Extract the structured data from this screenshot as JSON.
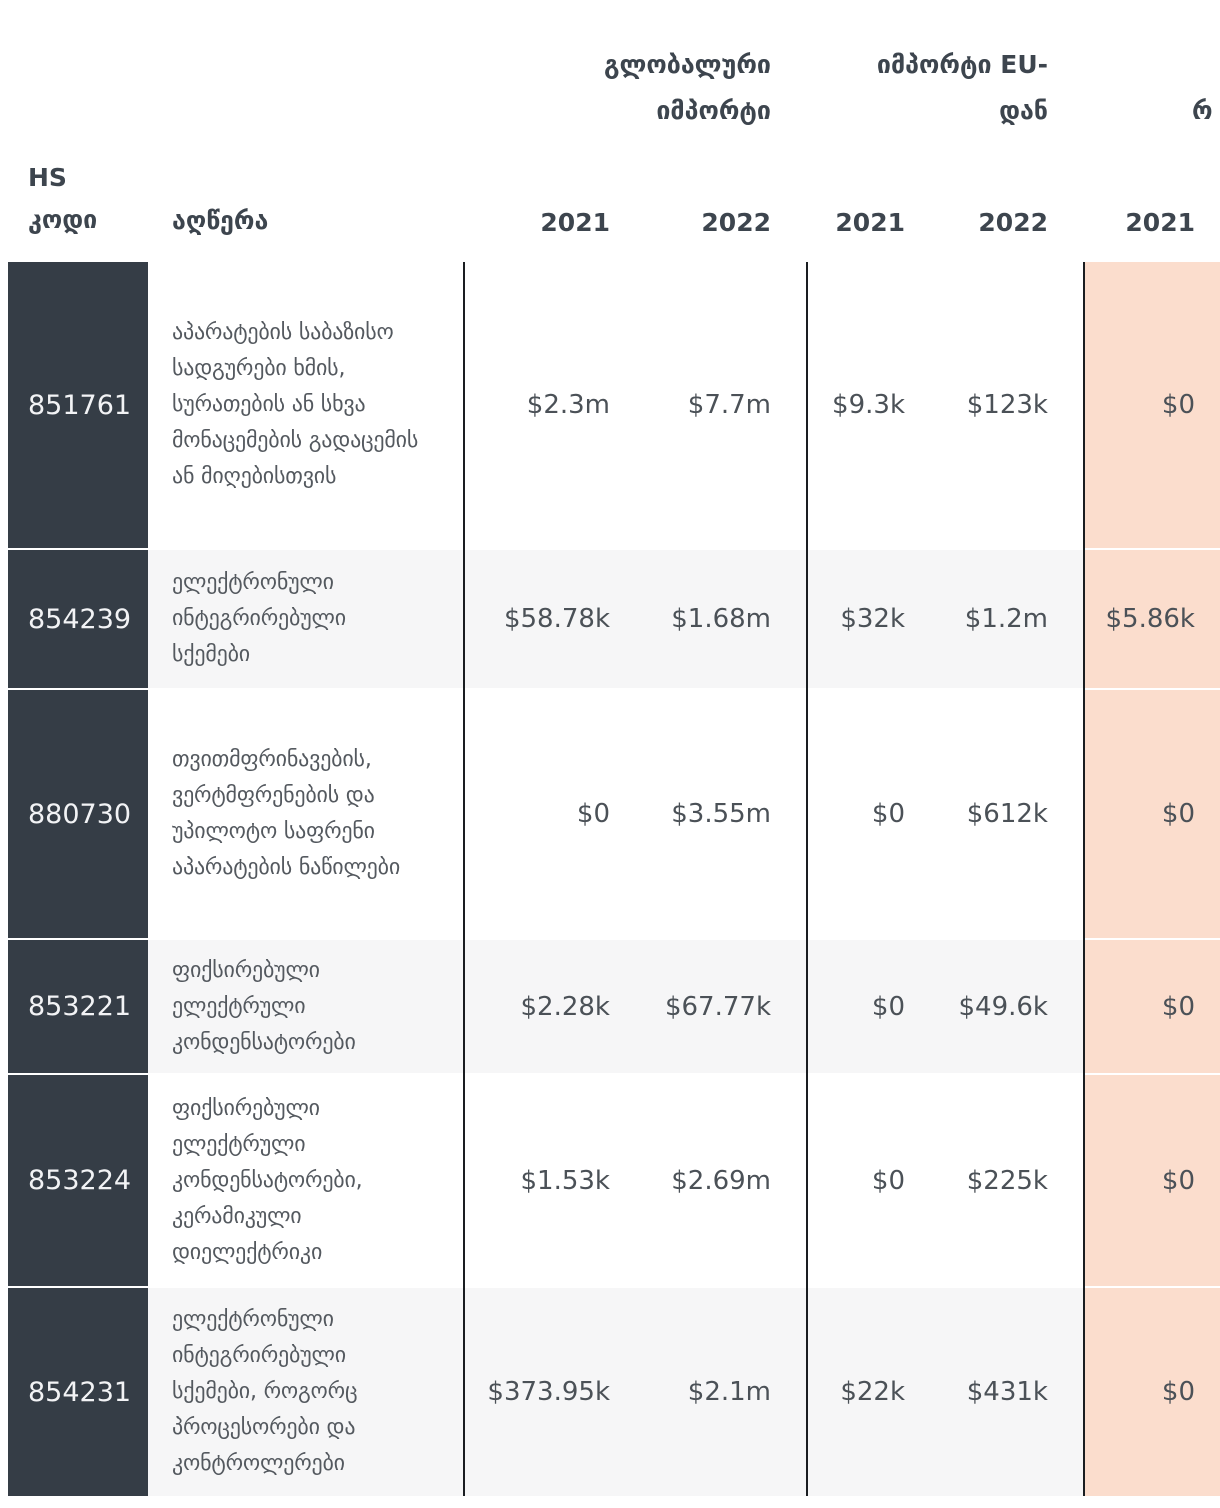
{
  "chart_data": {
    "type": "table",
    "column_groups": [
      {
        "line1": "გლობალური",
        "line2": "იმპორტი"
      },
      {
        "line1": "იმპორტი EU-",
        "line2": "დან"
      },
      {
        "line1": "",
        "line2": "რ"
      }
    ],
    "header": {
      "hs_line1": "HS",
      "hs_line2": "კოდი",
      "description": "აღწერა",
      "years": [
        "2021",
        "2022",
        "2021",
        "2022",
        "2021"
      ]
    },
    "rows": [
      {
        "hs_code": "851761",
        "description": "აპარატების საბაზისო სადგურები ხმის, სურათების ან სხვა მონაცემების გადაცემის ან მიღებისთვის",
        "values": [
          "$2.3m",
          "$7.7m",
          "$9.3k",
          "$123k",
          "$0"
        ]
      },
      {
        "hs_code": "854239",
        "description": "ელექტრონული ინტეგრირებული სქემები",
        "values": [
          "$58.78k",
          "$1.68m",
          "$32k",
          "$1.2m",
          "$5.86k"
        ]
      },
      {
        "hs_code": "880730",
        "description": "თვითმფრინავების, ვერტმფრენების და უპილოტო საფრენი აპარატების ნაწილები",
        "values": [
          "$0",
          "$3.55m",
          "$0",
          "$612k",
          "$0"
        ]
      },
      {
        "hs_code": "853221",
        "description": "ფიქსირებული ელექტრული კონდენსატორები",
        "values": [
          "$2.28k",
          "$67.77k",
          "$0",
          "$49.6k",
          "$0"
        ]
      },
      {
        "hs_code": "853224",
        "description": "ფიქსირებული ელექტრული კონდენსატორები, კერამიკული დიელექტრიკი",
        "values": [
          "$1.53k",
          "$2.69m",
          "$0",
          "$225k",
          "$0"
        ]
      },
      {
        "hs_code": "854231",
        "description": "ელექტრონული ინტეგრირებული სქემები, როგორც პროცესორები და კონტროლერები",
        "values": [
          "$373.95k",
          "$2.1m",
          "$22k",
          "$431k",
          "$0"
        ]
      }
    ]
  },
  "colors": {
    "hs_column_background": "#353d46",
    "highlight_column_background": "#fbddcd",
    "alt_row_background": "#f6f6f7",
    "column_divider": "#1a1d21",
    "header_text": "#3d454e",
    "body_text": "#4b5157",
    "code_text": "#f2f3f5"
  }
}
